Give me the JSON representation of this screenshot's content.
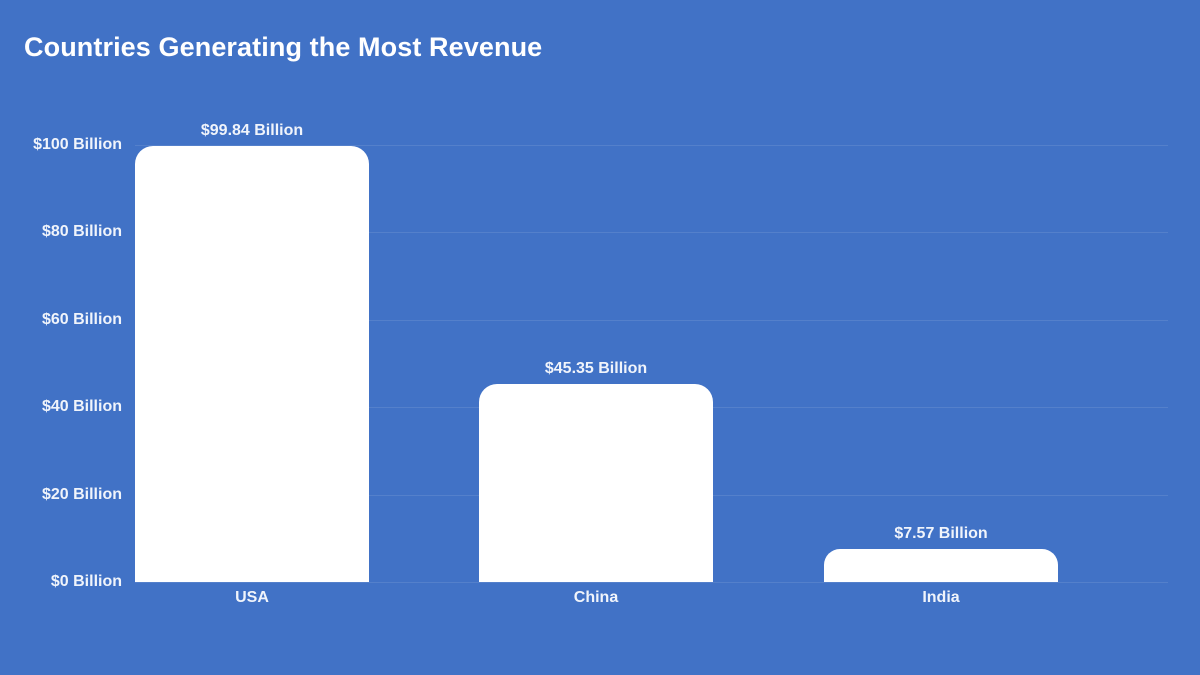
{
  "title": "Countries Generating the Most Revenue",
  "colors": {
    "background": "#4172c6",
    "bar": "#ffffff",
    "text": "#ffffff"
  },
  "y_axis": {
    "ticks": [
      {
        "value": 0,
        "label": "$0 Billion"
      },
      {
        "value": 20,
        "label": "$20 Billion"
      },
      {
        "value": 40,
        "label": "$40 Billion"
      },
      {
        "value": 60,
        "label": "$60 Billion"
      },
      {
        "value": 80,
        "label": "$80 Billion"
      },
      {
        "value": 100,
        "label": "$100 Billion"
      }
    ]
  },
  "bars": [
    {
      "category": "USA",
      "value": 99.84,
      "label": "$99.84 Billion"
    },
    {
      "category": "China",
      "value": 45.35,
      "label": "$45.35 Billion"
    },
    {
      "category": "India",
      "value": 7.57,
      "label": "$7.57 Billion"
    }
  ],
  "chart_data": {
    "type": "bar",
    "title": "Countries Generating the Most Revenue",
    "categories": [
      "USA",
      "China",
      "India"
    ],
    "values": [
      99.84,
      45.35,
      7.57
    ],
    "data_labels": [
      "$99.84 Billion",
      "$45.35 Billion",
      "$7.57 Billion"
    ],
    "xlabel": "",
    "ylabel": "",
    "unit": "Billion USD",
    "ylim": [
      0,
      100
    ],
    "yticks": [
      0,
      20,
      40,
      60,
      80,
      100
    ],
    "ytick_labels": [
      "$0 Billion",
      "$20 Billion",
      "$40 Billion",
      "$60 Billion",
      "$80 Billion",
      "$100 Billion"
    ],
    "grid": true,
    "legend": null
  }
}
